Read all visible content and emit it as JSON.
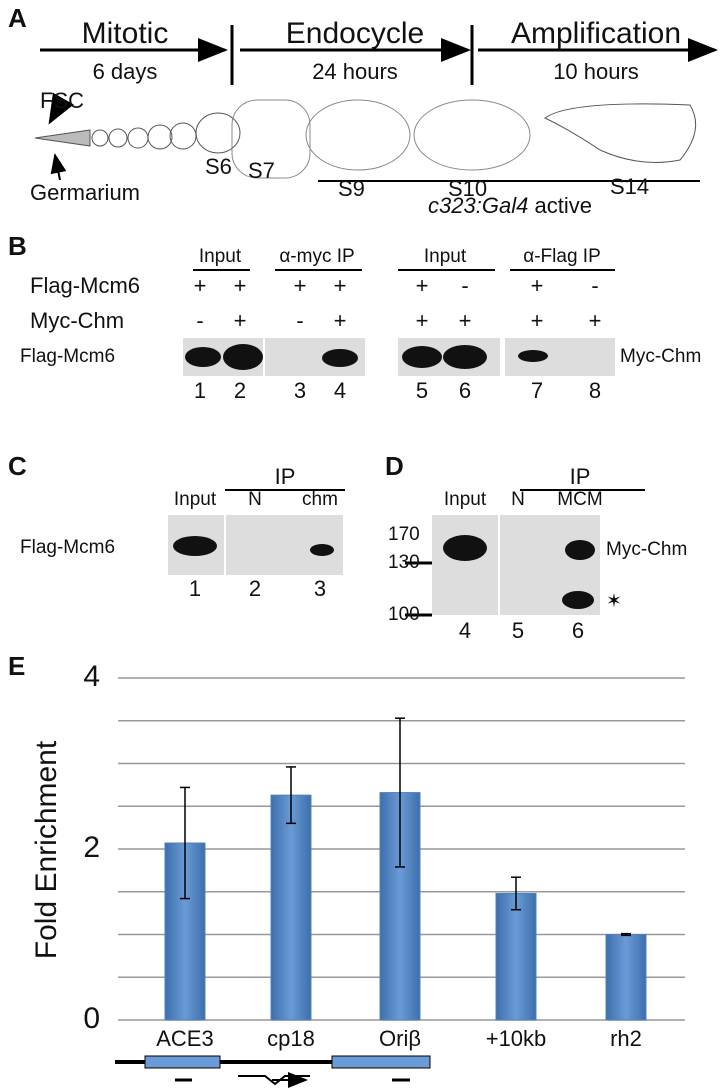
{
  "panel_a": {
    "label": "A",
    "stages": [
      {
        "name": "Mitotic",
        "duration": "6 days"
      },
      {
        "name": "Endocycle",
        "duration": "24 hours"
      },
      {
        "name": "Amplification",
        "duration": "10 hours"
      }
    ],
    "cells": [
      "FSC",
      "Germarium"
    ],
    "egg_stages": [
      "S6",
      "S7",
      "S9",
      "S10",
      "S14"
    ],
    "driver": "c323:Gal4",
    "driver_note": "active"
  },
  "panel_b": {
    "label": "B",
    "groups": [
      "Input",
      "α-myc IP",
      "Input",
      "α-Flag IP"
    ],
    "rows": [
      {
        "name": "Flag-Mcm6",
        "signs": [
          "+",
          "+",
          "+",
          "+",
          "+",
          "-",
          "+",
          "-"
        ]
      },
      {
        "name": "Myc-Chm",
        "signs": [
          "-",
          "+",
          "-",
          "+",
          "+",
          "+",
          "+",
          "+"
        ]
      }
    ],
    "blot_left": "Flag-Mcm6",
    "blot_right": "Myc-Chm",
    "lanes": [
      "1",
      "2",
      "3",
      "4",
      "5",
      "6",
      "7",
      "8"
    ]
  },
  "panel_c": {
    "label": "C",
    "group": "IP",
    "columns": [
      "Input",
      "N",
      "chm"
    ],
    "blot_label": "Flag-Mcm6",
    "lanes": [
      "1",
      "2",
      "3"
    ]
  },
  "panel_d": {
    "label": "D",
    "group": "IP",
    "columns": [
      "Input",
      "N",
      "MCM"
    ],
    "markers": [
      "170",
      "130",
      "100"
    ],
    "band_label": "Myc-Chm",
    "star": "✶",
    "lanes": [
      "4",
      "5",
      "6"
    ]
  },
  "chart_data": {
    "type": "bar",
    "panel_label": "E",
    "y_label": "Fold Enrichment",
    "categories": [
      "ACE3",
      "cp18",
      "Oriβ",
      "+10kb",
      "rh2"
    ],
    "values": [
      2.07,
      2.63,
      2.66,
      1.48,
      1.0
    ],
    "errors": [
      0.65,
      0.33,
      0.87,
      0.19,
      0.01
    ],
    "color": "#4f81bd",
    "ylim": [
      0,
      4
    ],
    "yticks": [
      0,
      2,
      4
    ],
    "ygrid": [
      0,
      0.5,
      1,
      1.5,
      2,
      2.5,
      3,
      3.5,
      4
    ]
  }
}
